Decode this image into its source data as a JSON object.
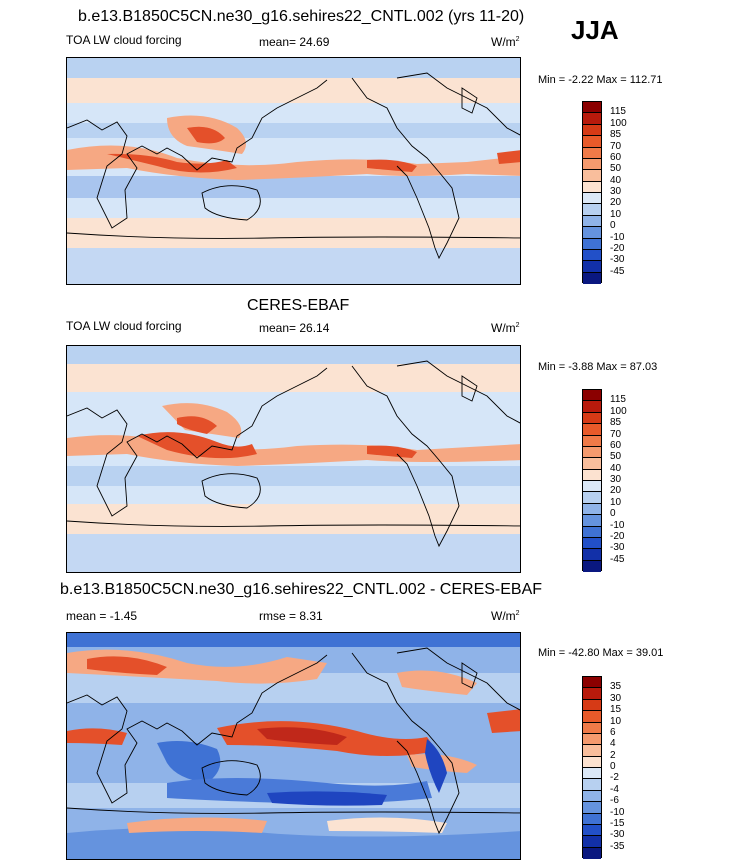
{
  "season": "JJA",
  "panels": [
    {
      "title": "b.e13.B1850C5CN.ne30_g16.sehires22_CNTL.002 (yrs 11-20)",
      "left_label": "TOA LW cloud forcing",
      "mid_label": "mean=  24.69",
      "units": "W/m",
      "units_sup": "2",
      "minmax": "Min =  -2.22 Max = 112.71",
      "colorbar": {
        "labels": [
          "115",
          "100",
          "85",
          "70",
          "60",
          "50",
          "40",
          "30",
          "20",
          "10",
          "0",
          "-10",
          "-20",
          "-30",
          "-45"
        ],
        "colors": [
          "#8b0000",
          "#b81a0c",
          "#d63a16",
          "#e85a2a",
          "#f07a48",
          "#f59a6e",
          "#f9be9c",
          "#fce2d0",
          "#dbe8f7",
          "#b7d0f0",
          "#8fb3e8",
          "#6593de",
          "#3f72d4",
          "#2250c8",
          "#1230a8",
          "#0a1880"
        ]
      },
      "pattern": "model"
    },
    {
      "title": "CERES-EBAF",
      "left_label": "TOA LW cloud forcing",
      "mid_label": "mean=  26.14",
      "units": "W/m",
      "units_sup": "2",
      "minmax": "Min =  -3.88 Max =  87.03",
      "colorbar": {
        "labels": [
          "115",
          "100",
          "85",
          "70",
          "60",
          "50",
          "40",
          "30",
          "20",
          "10",
          "0",
          "-10",
          "-20",
          "-30",
          "-45"
        ],
        "colors": [
          "#8b0000",
          "#b81a0c",
          "#d63a16",
          "#e85a2a",
          "#f07a48",
          "#f59a6e",
          "#f9be9c",
          "#fce2d0",
          "#dbe8f7",
          "#b7d0f0",
          "#8fb3e8",
          "#6593de",
          "#3f72d4",
          "#2250c8",
          "#1230a8",
          "#0a1880"
        ]
      },
      "pattern": "obs"
    },
    {
      "title": "b.e13.B1850C5CN.ne30_g16.sehires22_CNTL.002 - CERES-EBAF",
      "left_label": "mean =  -1.45",
      "mid_label": "rmse =   8.31",
      "units": "W/m",
      "units_sup": "2",
      "minmax": "Min = -42.80 Max =  39.01",
      "colorbar": {
        "labels": [
          "35",
          "30",
          "15",
          "10",
          "6",
          "4",
          "2",
          "0",
          "-2",
          "-4",
          "-6",
          "-10",
          "-15",
          "-30",
          "-35"
        ],
        "colors": [
          "#8b0000",
          "#b81a0c",
          "#d63a16",
          "#e85a2a",
          "#f07a48",
          "#f59a6e",
          "#f9be9c",
          "#fce2d0",
          "#dbe8f7",
          "#b7d0f0",
          "#8fb3e8",
          "#6593de",
          "#3f72d4",
          "#2250c8",
          "#1230a8",
          "#0a1880"
        ]
      },
      "pattern": "diff"
    }
  ],
  "colors": {
    "ocean_light": "#d6e6f8",
    "pale_peach": "#fbe3d2",
    "salmon": "#f6a883",
    "red": "#e4502a",
    "dark_red": "#c0281a",
    "mid_blue": "#8fb3e8",
    "blue": "#4a7ad8",
    "deep_blue": "#1f45c0"
  }
}
